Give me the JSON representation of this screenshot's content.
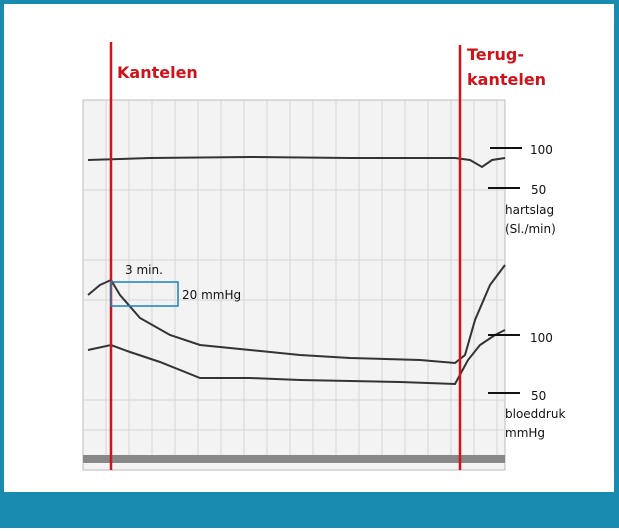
{
  "annotations": {
    "tilt": "Kantelen",
    "tilt_back_line1": "Terug-",
    "tilt_back_line2": "kantelen",
    "duration": "3 min.",
    "pressure_scale": "20 mmHg"
  },
  "heart_rate_scale": {
    "high": "100",
    "low": "50",
    "label_line1": "hartslag",
    "label_line2": "(Sl./min)"
  },
  "blood_pressure_scale": {
    "high": "100",
    "low": "50",
    "label_line1": "bloeddruk",
    "label_line2": "mmHg"
  }
}
